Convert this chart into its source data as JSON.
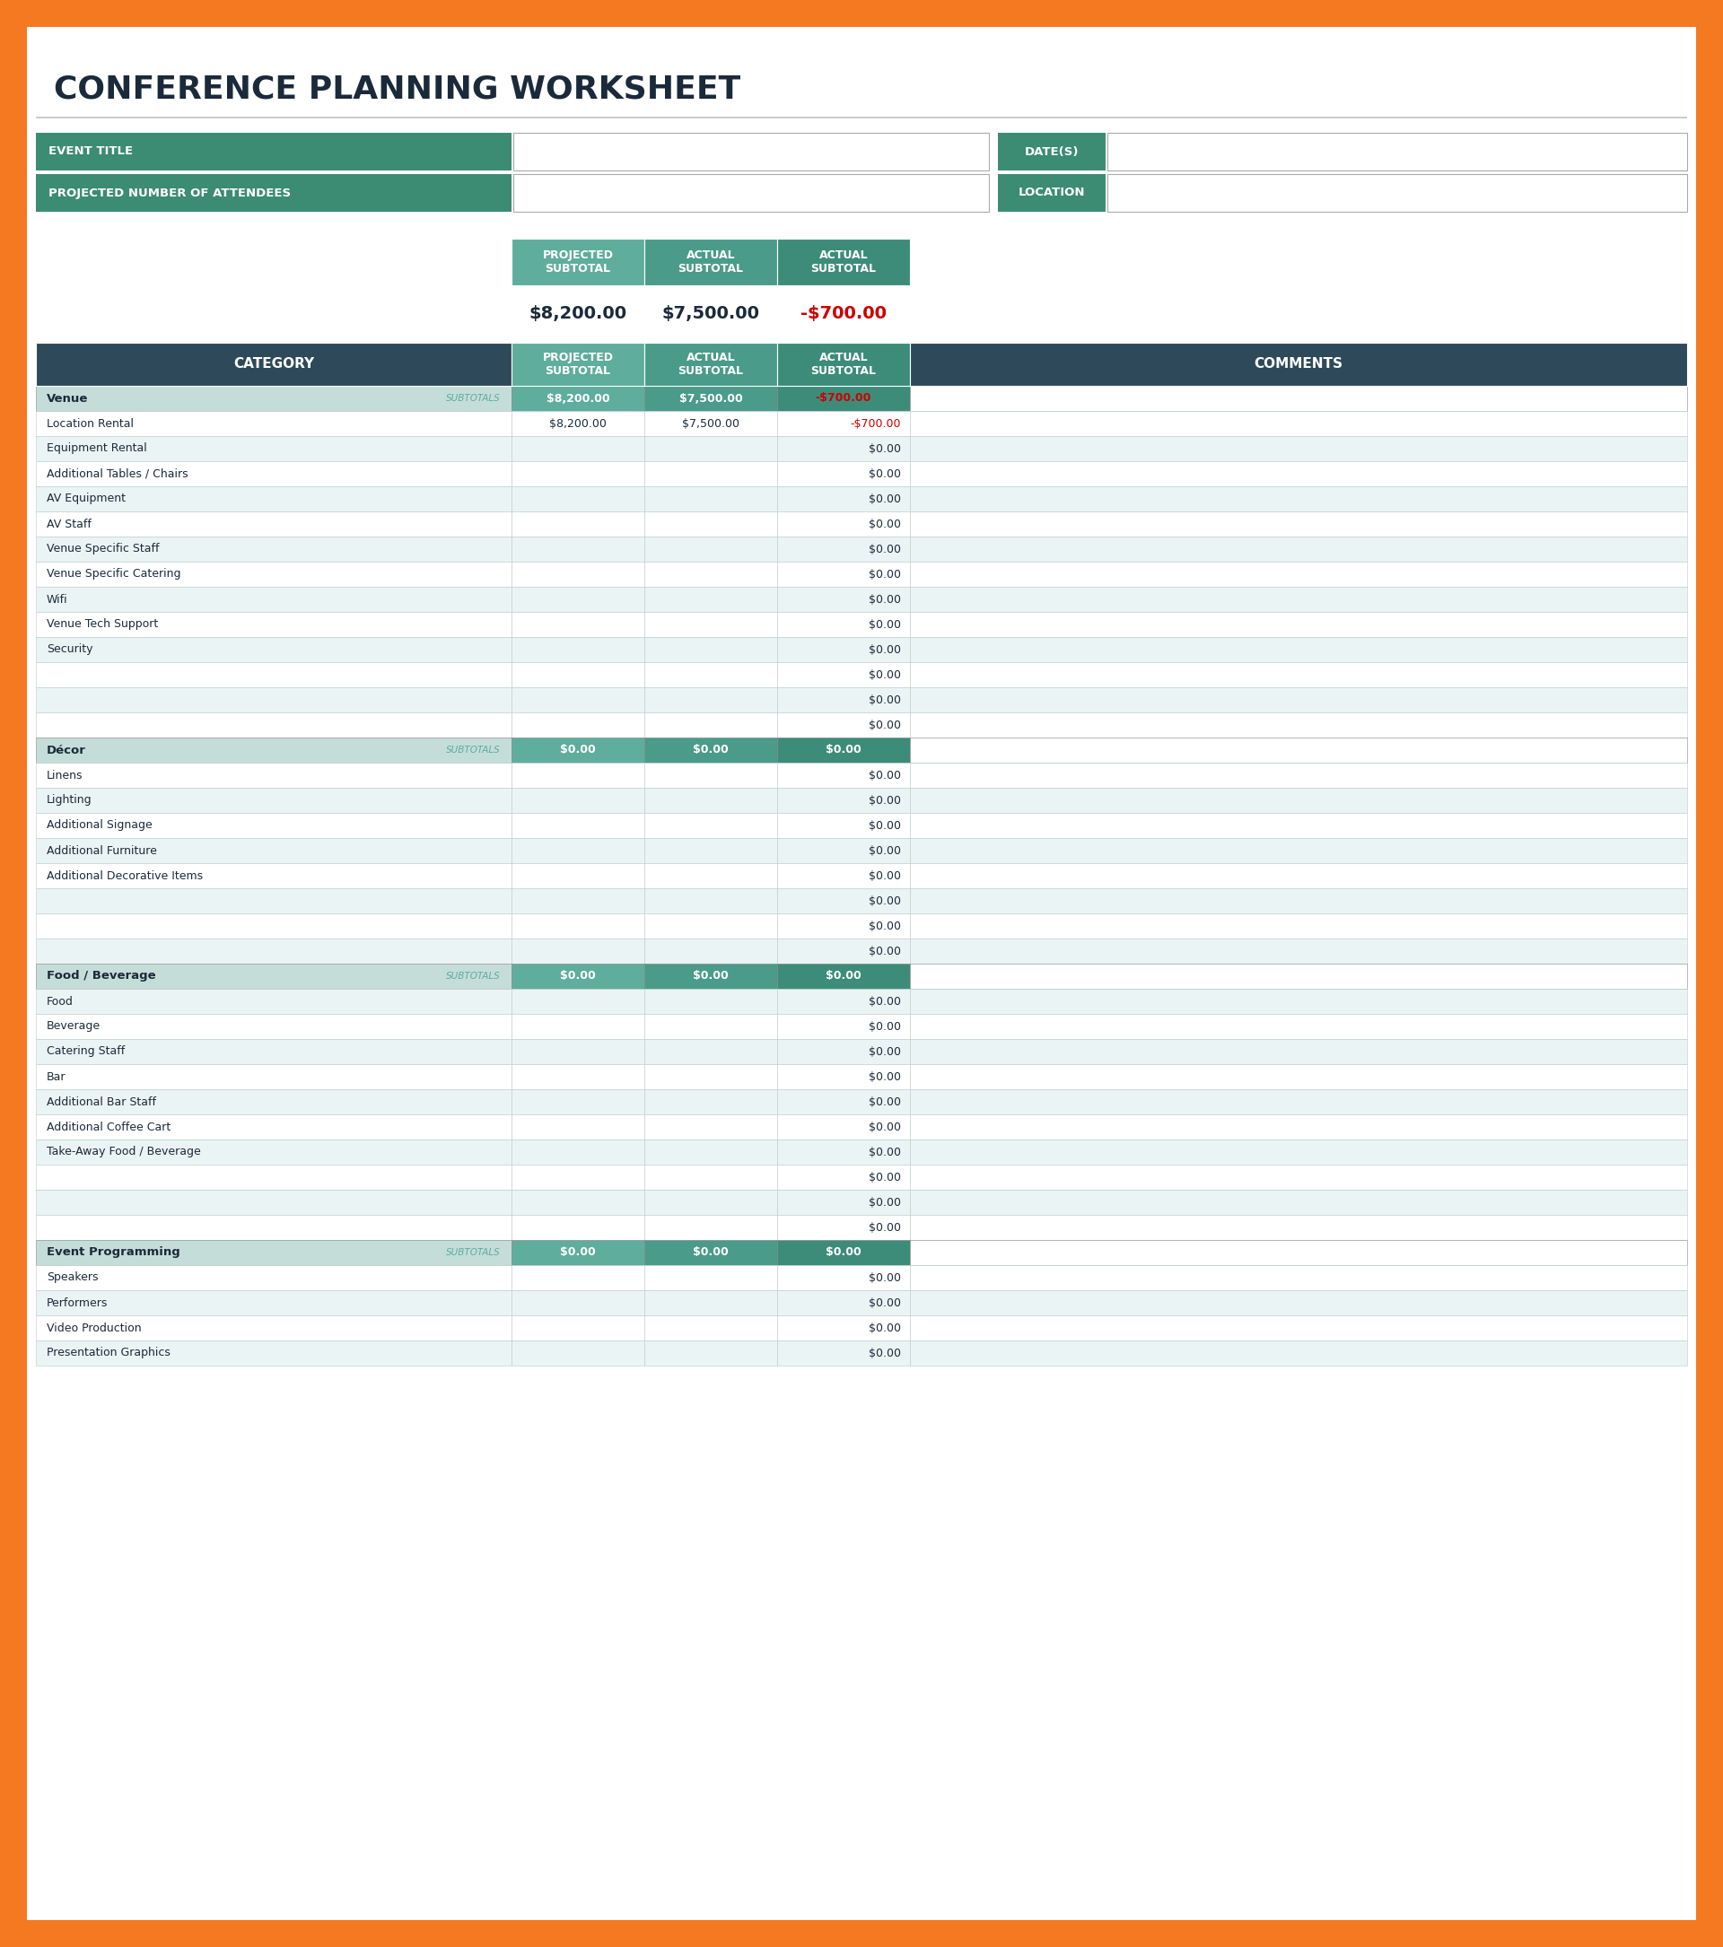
{
  "title": "CONFERENCE PLANNING WORKSHEET",
  "orange_border": "#F47920",
  "white_bg": "#FFFFFF",
  "dark_teal_header": "#3B8C72",
  "dark_navy": "#2E4A5A",
  "light_blue_row1": "#EBF4F4",
  "light_blue_row2": "#FFFFFF",
  "subtotal_row_bg": "#C5DDD8",
  "projected_col_bg": "#5FAD9C",
  "actual_col_bg": "#4A9B8A",
  "actual_subtotal_bg": "#3D8C7A",
  "text_dark": "#1a2a3a",
  "text_white": "#FFFFFF",
  "border_color": "#AAAAAA",
  "summary_headers": [
    "PROJECTED\nSUBTOTAL",
    "ACTUAL\nSUBTOTAL",
    "ACTUAL\nSUBTOTAL"
  ],
  "summary_values": [
    "$8,200.00",
    "$7,500.00",
    "-$700.00"
  ],
  "table_col_headers": [
    "CATEGORY",
    "PROJECTED\nSUBTOTAL",
    "ACTUAL\nSUBTOTAL",
    "ACTUAL\nSUBTOTAL",
    "COMMENTS"
  ],
  "rows": [
    {
      "type": "subtotal",
      "category": "Venue",
      "proj": "$8,200.00",
      "actual": "$7,500.00",
      "diff": "-$700.00"
    },
    {
      "type": "item",
      "category": "Location Rental",
      "proj": "$8,200.00",
      "actual": "$7,500.00",
      "diff": "-$700.00"
    },
    {
      "type": "item",
      "category": "Equipment Rental",
      "proj": "",
      "actual": "",
      "diff": "$0.00"
    },
    {
      "type": "item",
      "category": "Additional Tables / Chairs",
      "proj": "",
      "actual": "",
      "diff": "$0.00"
    },
    {
      "type": "item",
      "category": "AV Equipment",
      "proj": "",
      "actual": "",
      "diff": "$0.00"
    },
    {
      "type": "item",
      "category": "AV Staff",
      "proj": "",
      "actual": "",
      "diff": "$0.00"
    },
    {
      "type": "item",
      "category": "Venue Specific Staff",
      "proj": "",
      "actual": "",
      "diff": "$0.00"
    },
    {
      "type": "item",
      "category": "Venue Specific Catering",
      "proj": "",
      "actual": "",
      "diff": "$0.00"
    },
    {
      "type": "item",
      "category": "Wifi",
      "proj": "",
      "actual": "",
      "diff": "$0.00"
    },
    {
      "type": "item",
      "category": "Venue Tech Support",
      "proj": "",
      "actual": "",
      "diff": "$0.00"
    },
    {
      "type": "item",
      "category": "Security",
      "proj": "",
      "actual": "",
      "diff": "$0.00"
    },
    {
      "type": "item",
      "category": "",
      "proj": "",
      "actual": "",
      "diff": "$0.00"
    },
    {
      "type": "item",
      "category": "",
      "proj": "",
      "actual": "",
      "diff": "$0.00"
    },
    {
      "type": "item",
      "category": "",
      "proj": "",
      "actual": "",
      "diff": "$0.00"
    },
    {
      "type": "subtotal",
      "category": "Décor",
      "proj": "$0.00",
      "actual": "$0.00",
      "diff": "$0.00"
    },
    {
      "type": "item",
      "category": "Linens",
      "proj": "",
      "actual": "",
      "diff": "$0.00"
    },
    {
      "type": "item",
      "category": "Lighting",
      "proj": "",
      "actual": "",
      "diff": "$0.00"
    },
    {
      "type": "item",
      "category": "Additional Signage",
      "proj": "",
      "actual": "",
      "diff": "$0.00"
    },
    {
      "type": "item",
      "category": "Additional Furniture",
      "proj": "",
      "actual": "",
      "diff": "$0.00"
    },
    {
      "type": "item",
      "category": "Additional Decorative Items",
      "proj": "",
      "actual": "",
      "diff": "$0.00"
    },
    {
      "type": "item",
      "category": "",
      "proj": "",
      "actual": "",
      "diff": "$0.00"
    },
    {
      "type": "item",
      "category": "",
      "proj": "",
      "actual": "",
      "diff": "$0.00"
    },
    {
      "type": "item",
      "category": "",
      "proj": "",
      "actual": "",
      "diff": "$0.00"
    },
    {
      "type": "subtotal",
      "category": "Food / Beverage",
      "proj": "$0.00",
      "actual": "$0.00",
      "diff": "$0.00"
    },
    {
      "type": "item",
      "category": "Food",
      "proj": "",
      "actual": "",
      "diff": "$0.00"
    },
    {
      "type": "item",
      "category": "Beverage",
      "proj": "",
      "actual": "",
      "diff": "$0.00"
    },
    {
      "type": "item",
      "category": "Catering Staff",
      "proj": "",
      "actual": "",
      "diff": "$0.00"
    },
    {
      "type": "item",
      "category": "Bar",
      "proj": "",
      "actual": "",
      "diff": "$0.00"
    },
    {
      "type": "item",
      "category": "Additional Bar Staff",
      "proj": "",
      "actual": "",
      "diff": "$0.00"
    },
    {
      "type": "item",
      "category": "Additional Coffee Cart",
      "proj": "",
      "actual": "",
      "diff": "$0.00"
    },
    {
      "type": "item",
      "category": "Take-Away Food / Beverage",
      "proj": "",
      "actual": "",
      "diff": "$0.00"
    },
    {
      "type": "item",
      "category": "",
      "proj": "",
      "actual": "",
      "diff": "$0.00"
    },
    {
      "type": "item",
      "category": "",
      "proj": "",
      "actual": "",
      "diff": "$0.00"
    },
    {
      "type": "item",
      "category": "",
      "proj": "",
      "actual": "",
      "diff": "$0.00"
    },
    {
      "type": "subtotal",
      "category": "Event Programming",
      "proj": "$0.00",
      "actual": "$0.00",
      "diff": "$0.00"
    },
    {
      "type": "item",
      "category": "Speakers",
      "proj": "",
      "actual": "",
      "diff": "$0.00"
    },
    {
      "type": "item",
      "category": "Performers",
      "proj": "",
      "actual": "",
      "diff": "$0.00"
    },
    {
      "type": "item",
      "category": "Video Production",
      "proj": "",
      "actual": "",
      "diff": "$0.00"
    },
    {
      "type": "item",
      "category": "Presentation Graphics",
      "proj": "",
      "actual": "",
      "diff": "$0.00"
    }
  ]
}
